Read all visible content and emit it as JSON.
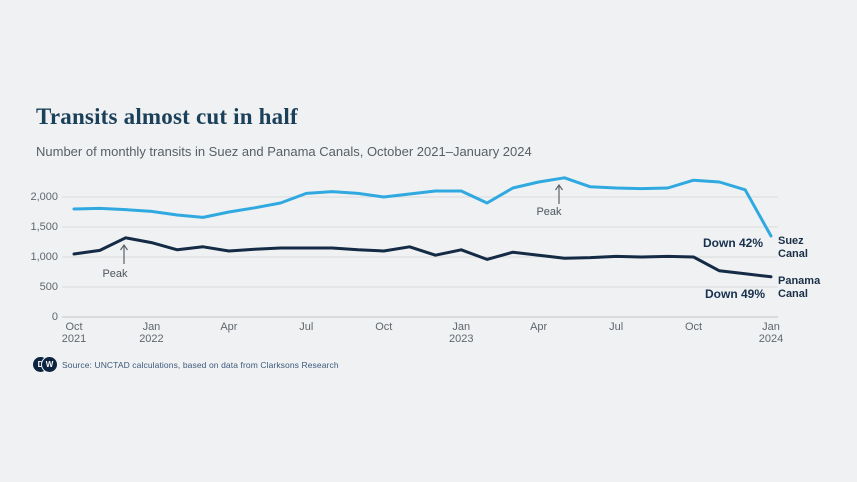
{
  "header": {
    "title": "Transits almost cut in half",
    "subtitle": "Number of monthly transits in Suez and Panama Canals, October 2021–January 2024"
  },
  "chart_data": {
    "type": "line",
    "title": "Transits almost cut in half",
    "subtitle": "Number of monthly transits in Suez and Panama Canals, October 2021–January 2024",
    "x": [
      "Oct 2021",
      "Nov 2021",
      "Dec 2021",
      "Jan 2022",
      "Feb 2022",
      "Mar 2022",
      "Apr 2022",
      "May 2022",
      "Jun 2022",
      "Jul 2022",
      "Aug 2022",
      "Sep 2022",
      "Oct 2022",
      "Nov 2022",
      "Dec 2022",
      "Jan 2023",
      "Feb 2023",
      "Mar 2023",
      "Apr 2023",
      "May 2023",
      "Jun 2023",
      "Jul 2023",
      "Aug 2023",
      "Sep 2023",
      "Oct 2023",
      "Nov 2023",
      "Dec 2023",
      "Jan 2024"
    ],
    "series": [
      {
        "name": "Suez Canal",
        "color": "#30a9e0",
        "values": [
          1800,
          1810,
          1790,
          1760,
          1700,
          1660,
          1750,
          1820,
          1900,
          2060,
          2090,
          2060,
          2000,
          2050,
          2100,
          2100,
          1900,
          2150,
          2250,
          2320,
          2170,
          2150,
          2140,
          2150,
          2280,
          2250,
          2120,
          1350
        ]
      },
      {
        "name": "Panama Canal",
        "color": "#142a45",
        "values": [
          1050,
          1110,
          1320,
          1240,
          1120,
          1170,
          1100,
          1130,
          1150,
          1150,
          1150,
          1120,
          1100,
          1170,
          1030,
          1120,
          960,
          1080,
          1030,
          980,
          990,
          1010,
          1000,
          1010,
          1000,
          770,
          720,
          670
        ]
      }
    ],
    "ylim": [
      0,
      2500
    ],
    "grid": "horizontal",
    "legend_position": "right-end-labels",
    "yticks": [
      {
        "value": 0,
        "label": "0"
      },
      {
        "value": 500,
        "label": "500"
      },
      {
        "value": 1000,
        "label": "1,000"
      },
      {
        "value": 1500,
        "label": "1,500"
      },
      {
        "value": 2000,
        "label": "2,000"
      }
    ],
    "xticks": [
      {
        "index": 0,
        "month": "Oct",
        "year": "2021"
      },
      {
        "index": 3,
        "month": "Jan",
        "year": "2022"
      },
      {
        "index": 6,
        "month": "Apr",
        "year": ""
      },
      {
        "index": 9,
        "month": "Jul",
        "year": ""
      },
      {
        "index": 12,
        "month": "Oct",
        "year": ""
      },
      {
        "index": 15,
        "month": "Jan",
        "year": "2023"
      },
      {
        "index": 18,
        "month": "Apr",
        "year": ""
      },
      {
        "index": 21,
        "month": "Jul",
        "year": ""
      },
      {
        "index": 24,
        "month": "Oct",
        "year": ""
      },
      {
        "index": 27,
        "month": "Jan",
        "year": "2024"
      }
    ],
    "annotations": [
      {
        "text": "Peak",
        "series": "Panama Canal",
        "at": "Dec 2021",
        "value": 1320
      },
      {
        "text": "Peak",
        "series": "Suez Canal",
        "at": "May 2023",
        "value": 2320
      },
      {
        "text": "Down 42%",
        "series": "Suez Canal"
      },
      {
        "text": "Down 49%",
        "series": "Panama Canal"
      }
    ]
  },
  "annotations": {
    "panama_peak": "Peak",
    "suez_peak": "Peak",
    "suez_down": "Down 42%",
    "panama_down": "Down 49%",
    "suez_end_label": {
      "line1": "Suez",
      "line2": "Canal"
    },
    "panama_end_label": {
      "line1": "Panama",
      "line2": "Canal"
    }
  },
  "footer": {
    "logo_d": "D",
    "logo_w": "W",
    "source": "Source: UNCTAD calculations, based on data from Clarksons Research"
  },
  "colors": {
    "background": "#eff1f3",
    "grid": "#d8dbde",
    "axis": "#c0c5ca",
    "suez_line": "#30a9e0",
    "panama_line": "#142a45",
    "title": "#1b4059"
  }
}
